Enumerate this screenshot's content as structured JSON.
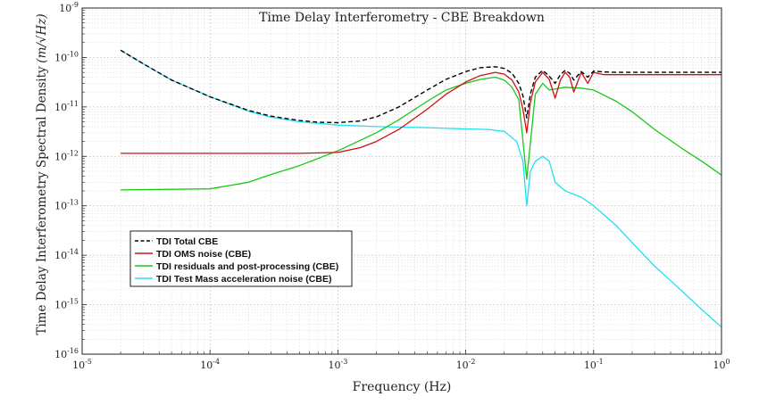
{
  "chart_data": {
    "type": "line",
    "title": "Time Delay Interferometry - CBE Breakdown",
    "xlabel": "Frequency (Hz)",
    "ylabel": "Time Delay Interferometry Spectral Density",
    "ylabel_unit": "(m/√Hz)",
    "x_scale": "log",
    "y_scale": "log",
    "xlim": [
      1e-05,
      1
    ],
    "ylim": [
      1e-16,
      1e-09
    ],
    "x_ticks": [
      {
        "value": 1e-05,
        "base": "10",
        "exp": "-5"
      },
      {
        "value": 0.0001,
        "base": "10",
        "exp": "-4"
      },
      {
        "value": 0.001,
        "base": "10",
        "exp": "-3"
      },
      {
        "value": 0.01,
        "base": "10",
        "exp": "-2"
      },
      {
        "value": 0.1,
        "base": "10",
        "exp": "-1"
      },
      {
        "value": 1,
        "base": "10",
        "exp": "0"
      }
    ],
    "y_ticks": [
      {
        "value": 1e-16,
        "base": "10",
        "exp": "-16"
      },
      {
        "value": 1e-15,
        "base": "10",
        "exp": "-15"
      },
      {
        "value": 1e-14,
        "base": "10",
        "exp": "-14"
      },
      {
        "value": 1e-13,
        "base": "10",
        "exp": "-13"
      },
      {
        "value": 1e-12,
        "base": "10",
        "exp": "-12"
      },
      {
        "value": 1e-11,
        "base": "10",
        "exp": "-11"
      },
      {
        "value": 1e-10,
        "base": "10",
        "exp": "-10"
      },
      {
        "value": 1e-09,
        "base": "10",
        "exp": "-9"
      }
    ],
    "grid": true,
    "legend_position": "lower-left",
    "series": [
      {
        "name": "TDI Total CBE",
        "color": "#000000",
        "dash": true,
        "x": [
          2e-05,
          3e-05,
          5e-05,
          0.0001,
          0.0002,
          0.0003,
          0.0005,
          0.0007,
          0.001,
          0.0015,
          0.002,
          0.003,
          0.005,
          0.007,
          0.01,
          0.013,
          0.017,
          0.02,
          0.023,
          0.026,
          0.028,
          0.03,
          0.032,
          0.035,
          0.04,
          0.045,
          0.05,
          0.055,
          0.06,
          0.065,
          0.07,
          0.08,
          0.09,
          0.1,
          0.12,
          0.15,
          0.2,
          0.3,
          0.5,
          0.7,
          1.0
        ],
        "y": [
          1.4e-10,
          7.5e-11,
          3.5e-11,
          1.6e-11,
          8.5e-12,
          6.5e-12,
          5.3e-12,
          4.9e-12,
          4.8e-12,
          5.2e-12,
          6.3e-12,
          1e-11,
          2.2e-11,
          3.6e-11,
          5.2e-11,
          6.2e-11,
          6.5e-11,
          6e-11,
          4.8e-11,
          3e-11,
          1.7e-11,
          6e-12,
          1.8e-11,
          4e-11,
          5.5e-11,
          4.2e-11,
          3e-11,
          4.5e-11,
          5.5e-11,
          4.8e-11,
          3.5e-11,
          5.2e-11,
          4e-11,
          5.3e-11,
          5.1e-11,
          5e-11,
          5e-11,
          5e-11,
          5e-11,
          5e-11,
          5e-11
        ]
      },
      {
        "name": "TDI OMS noise (CBE)",
        "color": "#d01010",
        "dash": false,
        "x": [
          2e-05,
          0.0001,
          0.0005,
          0.001,
          0.0015,
          0.002,
          0.003,
          0.005,
          0.007,
          0.01,
          0.013,
          0.017,
          0.02,
          0.023,
          0.026,
          0.028,
          0.03,
          0.032,
          0.035,
          0.04,
          0.045,
          0.05,
          0.055,
          0.06,
          0.065,
          0.07,
          0.08,
          0.09,
          0.1,
          0.12,
          0.15,
          0.2,
          0.3,
          0.5,
          0.7,
          1.0
        ],
        "y": [
          1.15e-12,
          1.15e-12,
          1.15e-12,
          1.2e-12,
          1.5e-12,
          2e-12,
          3.5e-12,
          9e-12,
          1.8e-11,
          3.2e-11,
          4.3e-11,
          5e-11,
          4.6e-11,
          3.5e-11,
          2e-11,
          9e-12,
          3e-12,
          1.2e-11,
          3.2e-11,
          5e-11,
          3.6e-11,
          1.5e-11,
          3.5e-11,
          5e-11,
          4e-11,
          2e-11,
          5e-11,
          3e-11,
          5e-11,
          4.5e-11,
          4.5e-11,
          4.5e-11,
          4.5e-11,
          4.5e-11,
          4.5e-11,
          4.5e-11
        ]
      },
      {
        "name": "TDI residuals and post-processing (CBE)",
        "color": "#18c818",
        "dash": false,
        "x": [
          2e-05,
          0.0001,
          0.0002,
          0.0003,
          0.0005,
          0.001,
          0.002,
          0.003,
          0.005,
          0.007,
          0.01,
          0.013,
          0.017,
          0.02,
          0.023,
          0.026,
          0.03,
          0.035,
          0.04,
          0.045,
          0.06,
          0.08,
          0.1,
          0.15,
          0.2,
          0.3,
          0.5,
          0.7,
          1.0
        ],
        "y": [
          2.1e-13,
          2.2e-13,
          3e-13,
          4.3e-13,
          6.5e-13,
          1.3e-12,
          3e-12,
          5.5e-12,
          1.3e-11,
          2.2e-11,
          3e-11,
          3.6e-11,
          4e-11,
          3.5e-11,
          2.5e-11,
          1.4e-11,
          3.5e-13,
          1.8e-11,
          3e-11,
          2.2e-11,
          2.5e-11,
          2.4e-11,
          2.2e-11,
          1.3e-11,
          8e-12,
          3.5e-12,
          1.4e-12,
          8e-13,
          4.2e-13
        ]
      },
      {
        "name": "TDI Test Mass acceleration noise (CBE)",
        "color": "#22e0f0",
        "dash": false,
        "x": [
          2e-05,
          3e-05,
          5e-05,
          0.0001,
          0.0002,
          0.0003,
          0.0005,
          0.001,
          0.002,
          0.005,
          0.01,
          0.015,
          0.02,
          0.025,
          0.028,
          0.03,
          0.032,
          0.035,
          0.04,
          0.045,
          0.05,
          0.06,
          0.08,
          0.1,
          0.15,
          0.2,
          0.3,
          0.5,
          0.7,
          1.0
        ],
        "y": [
          1.4e-10,
          7.5e-11,
          3.5e-11,
          1.6e-11,
          8.2e-12,
          6.2e-12,
          5e-12,
          4.3e-12,
          4e-12,
          3.8e-12,
          3.6e-12,
          3.5e-12,
          3.2e-12,
          2e-12,
          8e-13,
          1e-13,
          5e-13,
          8e-13,
          1e-12,
          8e-13,
          3e-13,
          2e-13,
          1.5e-13,
          1e-13,
          4e-14,
          1.8e-14,
          6e-15,
          1.8e-15,
          8e-16,
          3.5e-16
        ]
      }
    ]
  }
}
